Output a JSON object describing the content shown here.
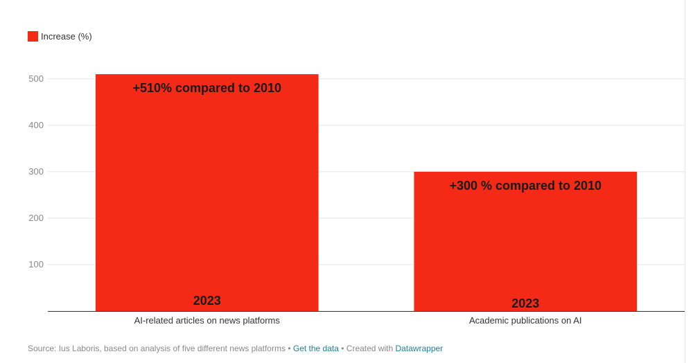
{
  "legend": {
    "label": "Increase (%)",
    "color": "#f42a16"
  },
  "chart_data": {
    "type": "bar",
    "categories": [
      "AI-related articles on news platforms",
      "Academic publications on AI"
    ],
    "series": [
      {
        "name": "Increase (%)",
        "values": [
          510,
          300
        ],
        "color": "#f42a16"
      }
    ],
    "top_labels": [
      "+510% compared to 2010",
      "+300 % compared to 2010"
    ],
    "bottom_labels": [
      "2023",
      "2023"
    ],
    "yticks": [
      100,
      200,
      300,
      400,
      500
    ],
    "ylim": [
      0,
      550
    ],
    "grid": true,
    "legend_position": "top-left",
    "title": "",
    "xlabel": "",
    "ylabel": ""
  },
  "footer": {
    "source": "Source: Ius Laboris, based on analysis of five different news platforms",
    "sep1": " • ",
    "data_link": "Get the data",
    "sep2": " • Created with ",
    "tool_link": "Datawrapper"
  }
}
